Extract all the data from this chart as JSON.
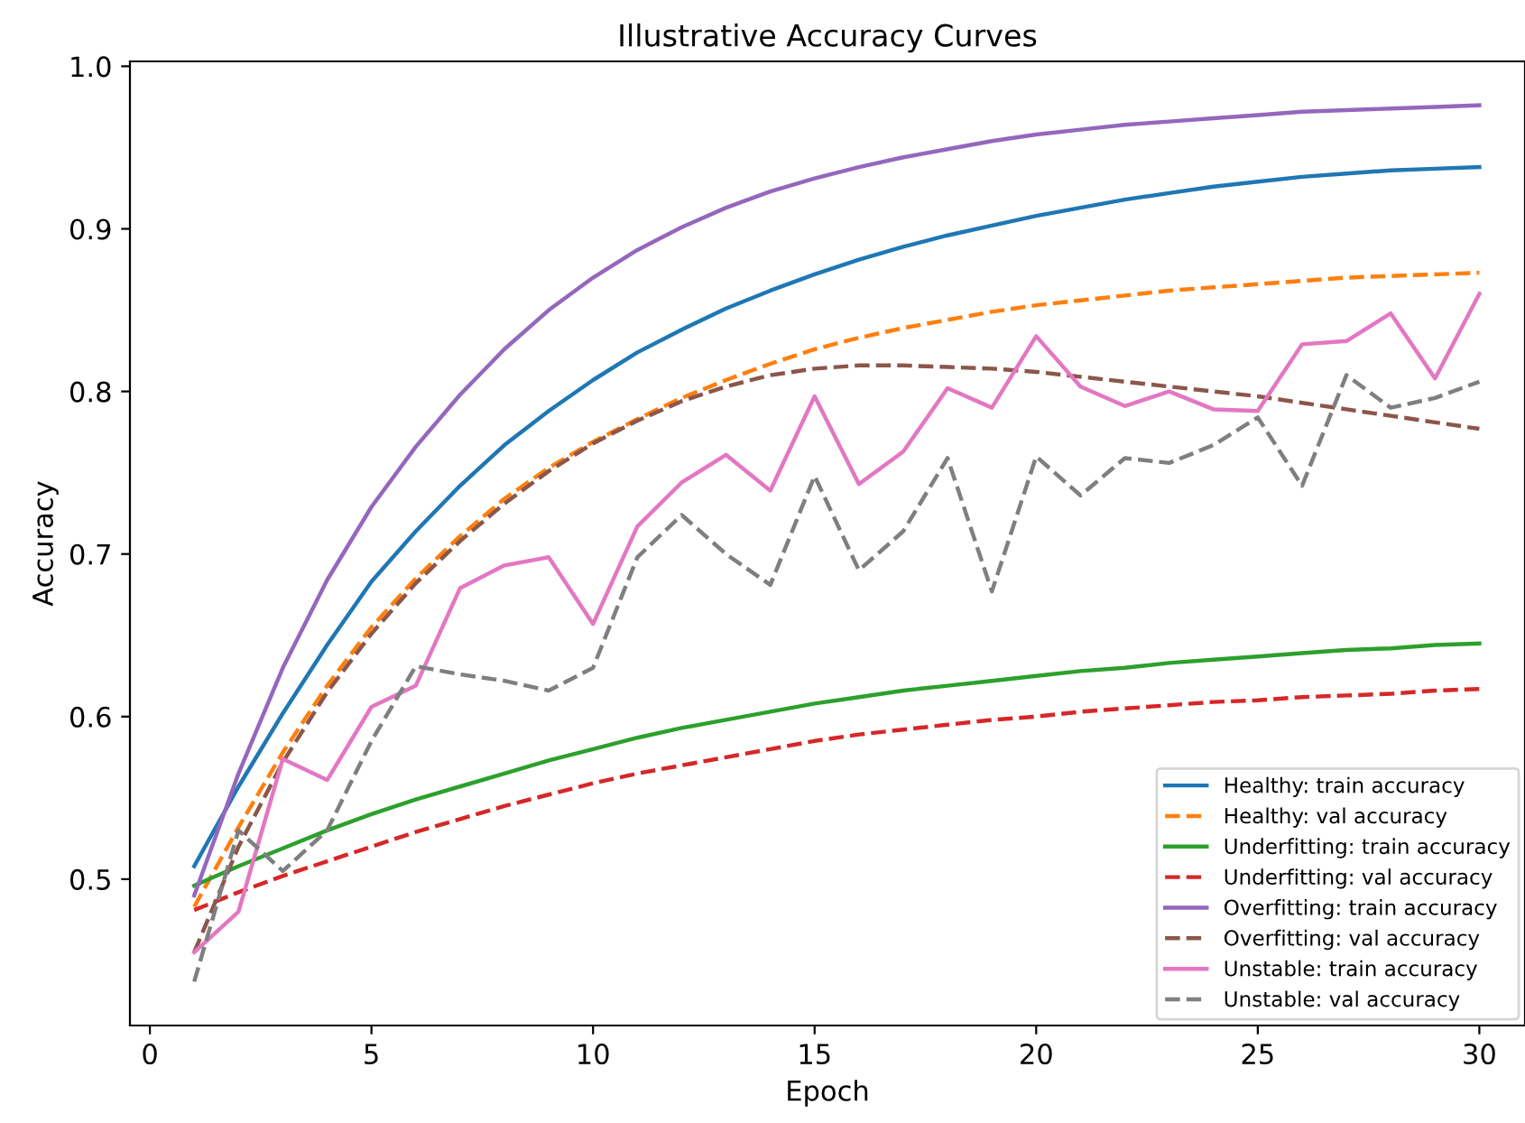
{
  "chart_data": {
    "type": "line",
    "title": "Illustrative Accuracy Curves",
    "xlabel": "Epoch",
    "ylabel": "Accuracy",
    "x": [
      1,
      2,
      3,
      4,
      5,
      6,
      7,
      8,
      9,
      10,
      11,
      12,
      13,
      14,
      15,
      16,
      17,
      18,
      19,
      20,
      21,
      22,
      23,
      24,
      25,
      26,
      27,
      28,
      29,
      30
    ],
    "xlim": [
      -0.45,
      31.03
    ],
    "ylim": [
      0.41,
      1.003
    ],
    "xticks": [
      0,
      5,
      10,
      15,
      20,
      25,
      30
    ],
    "yticks": [
      0.5,
      0.6,
      0.7,
      0.8,
      0.9,
      {
        "value": 1,
        "label": "1.0"
      }
    ],
    "grid": false,
    "legend": "bottom right",
    "marker": "none",
    "series": [
      {
        "name": "Healthy: train accuracy",
        "color": "#1f77b4",
        "line_style": "solid",
        "values": [
          0.508,
          0.557,
          0.602,
          0.644,
          0.683,
          0.714,
          0.742,
          0.767,
          0.788,
          0.807,
          0.824,
          0.838,
          0.851,
          0.862,
          0.872,
          0.881,
          0.889,
          0.896,
          0.902,
          0.908,
          0.913,
          0.918,
          0.922,
          0.926,
          0.929,
          0.932,
          0.934,
          0.936,
          0.937,
          0.938
        ]
      },
      {
        "name": "Healthy: val accuracy",
        "color": "#ff7f0e",
        "line_style": "dashed",
        "values": [
          0.483,
          0.532,
          0.578,
          0.619,
          0.655,
          0.685,
          0.711,
          0.734,
          0.753,
          0.769,
          0.783,
          0.796,
          0.807,
          0.817,
          0.826,
          0.833,
          0.839,
          0.844,
          0.849,
          0.853,
          0.856,
          0.859,
          0.862,
          0.864,
          0.866,
          0.868,
          0.87,
          0.871,
          0.872,
          0.873
        ]
      },
      {
        "name": "Underfitting: train accuracy",
        "color": "#2ca02c",
        "line_style": "solid",
        "values": [
          0.496,
          0.508,
          0.519,
          0.53,
          0.54,
          0.549,
          0.557,
          0.565,
          0.573,
          0.58,
          0.587,
          0.593,
          0.598,
          0.603,
          0.608,
          0.612,
          0.616,
          0.619,
          0.622,
          0.625,
          0.628,
          0.63,
          0.633,
          0.635,
          0.637,
          0.639,
          0.641,
          0.642,
          0.644,
          0.645
        ]
      },
      {
        "name": "Underfitting: val accuracy",
        "color": "#d62728",
        "line_style": "dashed",
        "values": [
          0.481,
          0.492,
          0.502,
          0.511,
          0.52,
          0.529,
          0.537,
          0.545,
          0.552,
          0.559,
          0.565,
          0.57,
          0.575,
          0.58,
          0.585,
          0.589,
          0.592,
          0.595,
          0.598,
          0.6,
          0.603,
          0.605,
          0.607,
          0.609,
          0.61,
          0.612,
          0.613,
          0.614,
          0.616,
          0.617
        ]
      },
      {
        "name": "Overfitting: train accuracy",
        "color": "#9467bd",
        "line_style": "solid",
        "values": [
          0.49,
          0.565,
          0.63,
          0.684,
          0.729,
          0.766,
          0.798,
          0.826,
          0.85,
          0.87,
          0.887,
          0.901,
          0.913,
          0.923,
          0.931,
          0.938,
          0.944,
          0.949,
          0.954,
          0.958,
          0.961,
          0.964,
          0.966,
          0.968,
          0.97,
          0.972,
          0.973,
          0.974,
          0.975,
          0.976
        ]
      },
      {
        "name": "Overfitting: val accuracy",
        "color": "#8c564b",
        "line_style": "dashed",
        "values": [
          0.455,
          0.52,
          0.572,
          0.615,
          0.651,
          0.682,
          0.708,
          0.731,
          0.751,
          0.768,
          0.782,
          0.794,
          0.803,
          0.81,
          0.814,
          0.816,
          0.816,
          0.815,
          0.814,
          0.812,
          0.809,
          0.806,
          0.803,
          0.8,
          0.797,
          0.793,
          0.789,
          0.785,
          0.781,
          0.777
        ]
      },
      {
        "name": "Unstable: train accuracy",
        "color": "#e377c2",
        "line_style": "solid",
        "values": [
          0.455,
          0.48,
          0.574,
          0.561,
          0.606,
          0.619,
          0.679,
          0.693,
          0.698,
          0.657,
          0.717,
          0.744,
          0.761,
          0.739,
          0.797,
          0.743,
          0.763,
          0.802,
          0.79,
          0.834,
          0.803,
          0.791,
          0.8,
          0.789,
          0.788,
          0.829,
          0.831,
          0.848,
          0.808,
          0.86
        ]
      },
      {
        "name": "Unstable: val accuracy",
        "color": "#7f7f7f",
        "line_style": "dashed",
        "values": [
          0.437,
          0.53,
          0.505,
          0.53,
          0.585,
          0.631,
          0.626,
          0.622,
          0.616,
          0.63,
          0.698,
          0.724,
          0.7,
          0.681,
          0.748,
          0.69,
          0.714,
          0.759,
          0.677,
          0.76,
          0.736,
          0.759,
          0.756,
          0.767,
          0.784,
          0.742,
          0.81,
          0.79,
          0.796,
          0.806
        ]
      }
    ]
  }
}
